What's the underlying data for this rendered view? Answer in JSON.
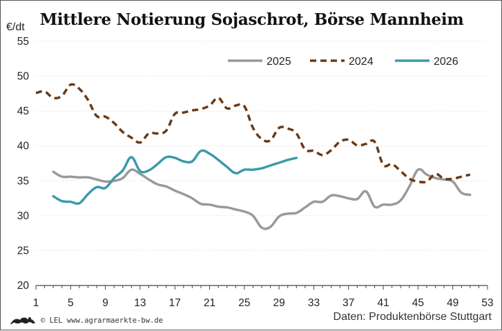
{
  "chart_data": {
    "type": "line",
    "title": "Mittlere Notierung Sojaschrot, Börse Mannheim",
    "ylabel": "€/dt",
    "xlim": [
      1,
      53
    ],
    "ylim": [
      20,
      55
    ],
    "x_ticks": [
      1,
      5,
      9,
      13,
      17,
      21,
      25,
      29,
      33,
      37,
      41,
      45,
      49,
      53
    ],
    "y_ticks": [
      20,
      25,
      30,
      35,
      40,
      45,
      50,
      55
    ],
    "grid": "horizontal",
    "legend_position": "top-right",
    "series": [
      {
        "name": "2025",
        "color": "#999999",
        "dash": "solid",
        "points": [
          [
            3,
            36.3
          ],
          [
            4,
            35.6
          ],
          [
            5,
            35.6
          ],
          [
            6,
            35.5
          ],
          [
            7,
            35.5
          ],
          [
            8,
            35.2
          ],
          [
            9,
            34.9
          ],
          [
            10,
            35.0
          ],
          [
            11,
            35.4
          ],
          [
            12,
            36.6
          ],
          [
            13,
            36.0
          ],
          [
            14,
            35.2
          ],
          [
            15,
            34.5
          ],
          [
            16,
            34.2
          ],
          [
            17,
            33.6
          ],
          [
            18,
            33.1
          ],
          [
            19,
            32.5
          ],
          [
            20,
            31.7
          ],
          [
            21,
            31.6
          ],
          [
            22,
            31.3
          ],
          [
            23,
            31.2
          ],
          [
            24,
            30.9
          ],
          [
            25,
            30.6
          ],
          [
            26,
            30.0
          ],
          [
            27,
            28.3
          ],
          [
            28,
            28.4
          ],
          [
            29,
            29.9
          ],
          [
            30,
            30.3
          ],
          [
            31,
            30.4
          ],
          [
            32,
            31.2
          ],
          [
            33,
            32.0
          ],
          [
            34,
            32.0
          ],
          [
            35,
            32.9
          ],
          [
            36,
            32.8
          ],
          [
            37,
            32.5
          ],
          [
            38,
            32.4
          ],
          [
            39,
            33.5
          ],
          [
            40,
            31.3
          ],
          [
            41,
            31.6
          ],
          [
            42,
            31.6
          ],
          [
            43,
            32.2
          ],
          [
            44,
            34.2
          ],
          [
            45,
            36.6
          ],
          [
            46,
            35.9
          ],
          [
            47,
            35.4
          ],
          [
            48,
            35.2
          ],
          [
            49,
            34.9
          ],
          [
            50,
            33.3
          ],
          [
            51,
            33.0
          ]
        ]
      },
      {
        "name": "2024",
        "color": "#6b3a14",
        "dash": "dashed",
        "points": [
          [
            1,
            47.6
          ],
          [
            2,
            47.8
          ],
          [
            3,
            46.9
          ],
          [
            4,
            47.2
          ],
          [
            5,
            48.8
          ],
          [
            6,
            48.2
          ],
          [
            7,
            46.6
          ],
          [
            8,
            44.3
          ],
          [
            9,
            44.2
          ],
          [
            10,
            43.3
          ],
          [
            11,
            42.0
          ],
          [
            12,
            41.2
          ],
          [
            13,
            40.5
          ],
          [
            14,
            41.8
          ],
          [
            15,
            41.8
          ],
          [
            16,
            42.2
          ],
          [
            17,
            44.6
          ],
          [
            18,
            44.8
          ],
          [
            19,
            45.1
          ],
          [
            20,
            45.3
          ],
          [
            21,
            45.8
          ],
          [
            22,
            46.9
          ],
          [
            23,
            45.4
          ],
          [
            24,
            45.8
          ],
          [
            25,
            45.7
          ],
          [
            26,
            42.6
          ],
          [
            27,
            41.0
          ],
          [
            28,
            40.8
          ],
          [
            29,
            42.6
          ],
          [
            30,
            42.5
          ],
          [
            31,
            41.8
          ],
          [
            32,
            39.5
          ],
          [
            33,
            39.3
          ],
          [
            34,
            38.7
          ],
          [
            35,
            39.4
          ],
          [
            36,
            40.6
          ],
          [
            37,
            40.9
          ],
          [
            38,
            40.1
          ],
          [
            39,
            40.3
          ],
          [
            40,
            40.6
          ],
          [
            41,
            37.3
          ],
          [
            42,
            37.4
          ],
          [
            43,
            36.4
          ],
          [
            44,
            35.3
          ],
          [
            45,
            34.9
          ],
          [
            46,
            34.9
          ],
          [
            47,
            36.0
          ],
          [
            48,
            35.3
          ],
          [
            49,
            35.3
          ],
          [
            50,
            35.6
          ],
          [
            51,
            35.9
          ]
        ]
      },
      {
        "name": "2026",
        "color": "#3a9aab",
        "dash": "solid",
        "points": [
          [
            3,
            32.8
          ],
          [
            4,
            32.1
          ],
          [
            5,
            32.0
          ],
          [
            6,
            31.8
          ],
          [
            7,
            33.1
          ],
          [
            8,
            34.1
          ],
          [
            9,
            34.0
          ],
          [
            10,
            35.4
          ],
          [
            11,
            36.5
          ],
          [
            12,
            38.4
          ],
          [
            13,
            36.4
          ],
          [
            14,
            36.5
          ],
          [
            15,
            37.4
          ],
          [
            16,
            38.4
          ],
          [
            17,
            38.3
          ],
          [
            18,
            37.8
          ],
          [
            19,
            37.8
          ],
          [
            20,
            39.3
          ],
          [
            21,
            38.9
          ],
          [
            22,
            38.0
          ],
          [
            23,
            37.0
          ],
          [
            24,
            36.1
          ],
          [
            25,
            36.6
          ],
          [
            26,
            36.6
          ],
          [
            27,
            36.8
          ],
          [
            28,
            37.2
          ],
          [
            29,
            37.6
          ],
          [
            30,
            38.0
          ],
          [
            31,
            38.3
          ]
        ]
      }
    ]
  },
  "legend": [
    {
      "label": "2025",
      "color": "#999999",
      "dash": "solid"
    },
    {
      "label": "2024",
      "color": "#6b3a14",
      "dash": "dashed"
    },
    {
      "label": "2026",
      "color": "#3a9aab",
      "dash": "solid"
    }
  ],
  "footer": {
    "left": "© LEL www.agrarmaerkte-bw.de",
    "right": "Daten: Produktenbörse Stuttgart",
    "logo_icon": "bw-lion-logo-icon"
  }
}
